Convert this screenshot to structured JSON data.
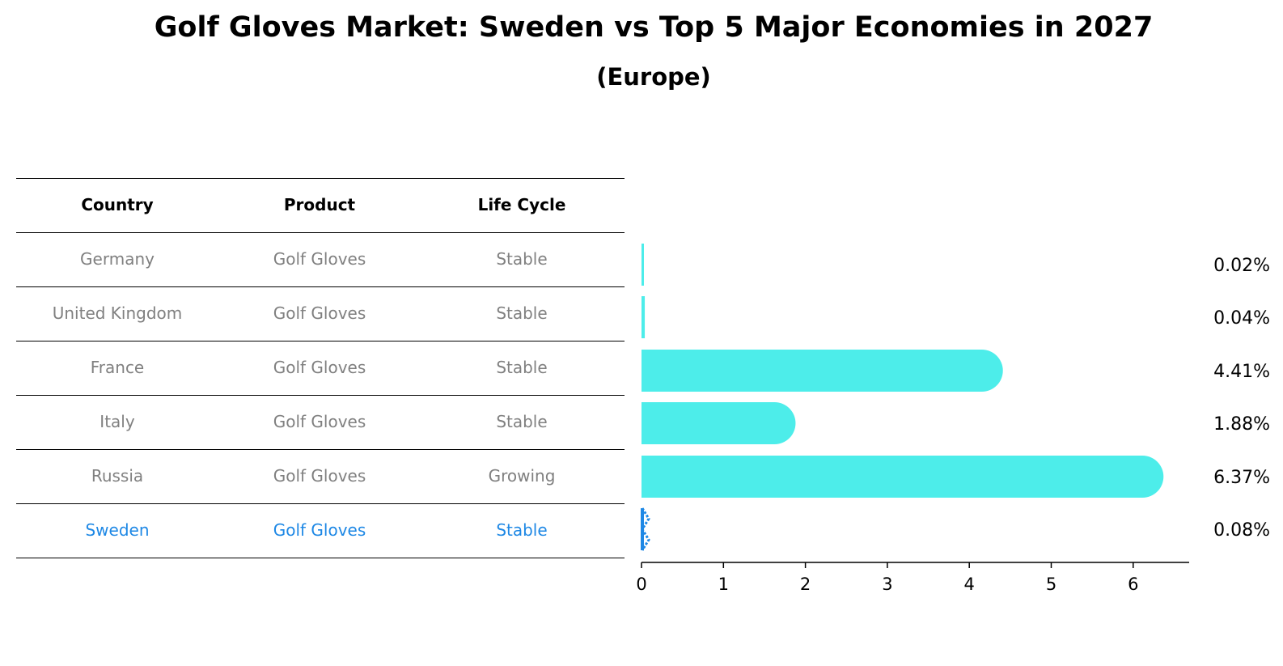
{
  "chart_data": {
    "type": "bar",
    "orientation": "horizontal",
    "title": "Golf Gloves Market: Sweden vs Top 5 Major Economies in 2027",
    "subtitle": "(Europe)",
    "columns": [
      "Country",
      "Product",
      "Life Cycle"
    ],
    "rows": [
      {
        "country": "Germany",
        "product": "Golf Gloves",
        "life_cycle": "Stable",
        "value": 0.02,
        "label": "0.02%",
        "highlight": false
      },
      {
        "country": "United Kingdom",
        "product": "Golf Gloves",
        "life_cycle": "Stable",
        "value": 0.04,
        "label": "0.04%",
        "highlight": false
      },
      {
        "country": "France",
        "product": "Golf Gloves",
        "life_cycle": "Stable",
        "value": 4.41,
        "label": "4.41%",
        "highlight": false
      },
      {
        "country": "Italy",
        "product": "Golf Gloves",
        "life_cycle": "Stable",
        "value": 1.88,
        "label": "1.88%",
        "highlight": false
      },
      {
        "country": "Russia",
        "product": "Golf Gloves",
        "life_cycle": "Growing",
        "value": 6.37,
        "label": "6.37%",
        "highlight": false
      },
      {
        "country": "Sweden",
        "product": "Golf Gloves",
        "life_cycle": "Stable",
        "value": 0.08,
        "label": "0.08%",
        "highlight": true
      }
    ],
    "xticks": [
      "0",
      "1",
      "2",
      "3",
      "4",
      "5",
      "6"
    ],
    "xlim": [
      0,
      6.68
    ],
    "xlabel": "",
    "ylabel": "",
    "grid": false,
    "legend": false,
    "colors": {
      "bar": "#4DEDEA",
      "highlight_bar": "#1E88E5",
      "highlight_text": "#1E88E5",
      "table_text": "#808080"
    }
  }
}
